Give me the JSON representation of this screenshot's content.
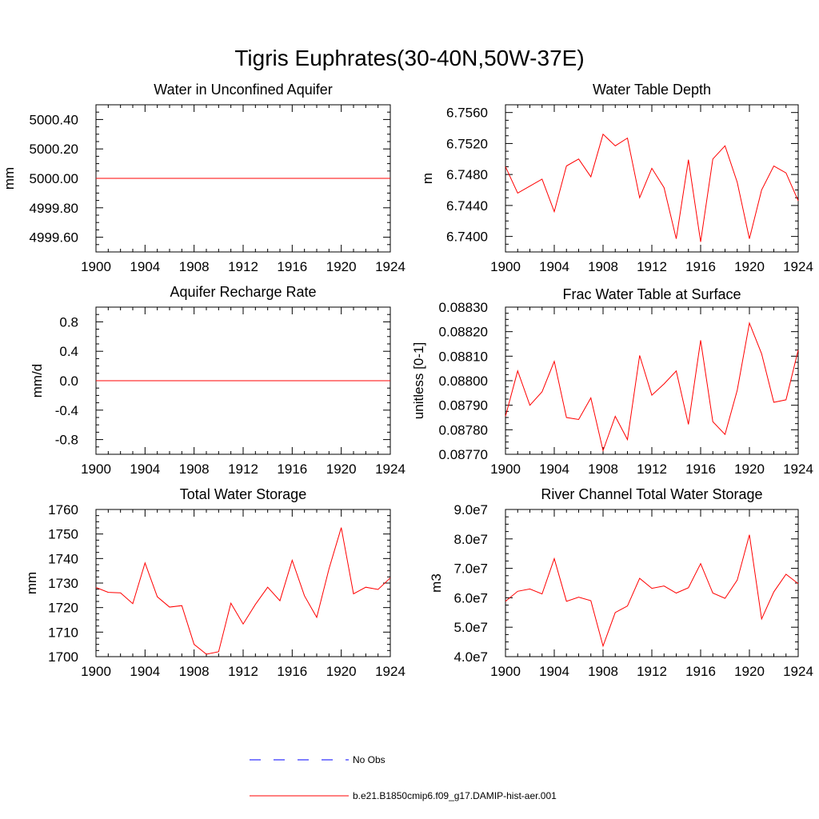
{
  "title": "Tigris Euphrates(30-40N,50W-37E)",
  "chart_data": [
    {
      "type": "line",
      "title": "Water in Unconfined Aquifer",
      "ylabel": "mm",
      "xlim": [
        1900,
        1924
      ],
      "ylim": [
        4999.5,
        5000.5
      ],
      "x_ticks": [
        1900,
        1904,
        1908,
        1912,
        1916,
        1920,
        1924
      ],
      "x_tick_labels": [
        "1900",
        "1904",
        "1908",
        "1912",
        "1916",
        "1920",
        "1924"
      ],
      "y_ticks": [
        4999.6,
        4999.8,
        5000.0,
        5000.2,
        5000.4
      ],
      "y_tick_labels": [
        "4999.60",
        "4999.80",
        "5000.00",
        "5000.20",
        "5000.40"
      ],
      "x": [
        1900,
        1901,
        1902,
        1903,
        1904,
        1905,
        1906,
        1907,
        1908,
        1909,
        1910,
        1911,
        1912,
        1913,
        1914,
        1915,
        1916,
        1917,
        1918,
        1919,
        1920,
        1921,
        1922,
        1923,
        1924
      ],
      "series": [
        {
          "values": [
            5000,
            5000,
            5000,
            5000,
            5000,
            5000,
            5000,
            5000,
            5000,
            5000,
            5000,
            5000,
            5000,
            5000,
            5000,
            5000,
            5000,
            5000,
            5000,
            5000,
            5000,
            5000,
            5000,
            5000,
            5000
          ],
          "color": "#ff0000"
        }
      ]
    },
    {
      "type": "line",
      "title": "Water Table Depth",
      "ylabel": "m",
      "xlim": [
        1900,
        1924
      ],
      "ylim": [
        6.738,
        6.757
      ],
      "x_ticks": [
        1900,
        1904,
        1908,
        1912,
        1916,
        1920,
        1924
      ],
      "x_tick_labels": [
        "1900",
        "1904",
        "1908",
        "1912",
        "1916",
        "1920",
        "1924"
      ],
      "y_ticks": [
        6.74,
        6.744,
        6.748,
        6.752,
        6.756
      ],
      "y_tick_labels": [
        "6.7400",
        "6.7440",
        "6.7480",
        "6.7520",
        "6.7560"
      ],
      "x": [
        1900,
        1901,
        1902,
        1903,
        1904,
        1905,
        1906,
        1907,
        1908,
        1909,
        1910,
        1911,
        1912,
        1913,
        1914,
        1915,
        1916,
        1917,
        1918,
        1919,
        1920,
        1921,
        1922,
        1923,
        1924
      ],
      "series": [
        {
          "values": [
            6.749,
            6.7456,
            6.7465,
            6.7474,
            6.7432,
            6.7491,
            6.75,
            6.7477,
            6.7532,
            6.7517,
            6.7527,
            6.745,
            6.7488,
            6.7463,
            6.7397,
            6.7499,
            6.7393,
            6.75,
            6.7517,
            6.747,
            6.7397,
            6.746,
            6.7491,
            6.7482,
            6.7446
          ],
          "color": "#ff0000"
        }
      ]
    },
    {
      "type": "line",
      "title": "Aquifer Recharge Rate",
      "ylabel": "mm/d",
      "xlim": [
        1900,
        1924
      ],
      "ylim": [
        -1.0,
        1.0
      ],
      "x_ticks": [
        1900,
        1904,
        1908,
        1912,
        1916,
        1920,
        1924
      ],
      "x_tick_labels": [
        "1900",
        "1904",
        "1908",
        "1912",
        "1916",
        "1920",
        "1924"
      ],
      "y_ticks": [
        -0.8,
        -0.4,
        0.0,
        0.4,
        0.8
      ],
      "y_tick_labels": [
        "-0.8",
        "-0.4",
        "0.0",
        "0.4",
        "0.8"
      ],
      "x": [
        1900,
        1901,
        1902,
        1903,
        1904,
        1905,
        1906,
        1907,
        1908,
        1909,
        1910,
        1911,
        1912,
        1913,
        1914,
        1915,
        1916,
        1917,
        1918,
        1919,
        1920,
        1921,
        1922,
        1923,
        1924
      ],
      "series": [
        {
          "values": [
            0,
            0,
            0,
            0,
            0,
            0,
            0,
            0,
            0,
            0,
            0,
            0,
            0,
            0,
            0,
            0,
            0,
            0,
            0,
            0,
            0,
            0,
            0,
            0,
            0
          ],
          "color": "#ff0000"
        }
      ]
    },
    {
      "type": "line",
      "title": "Frac Water Table at Surface",
      "ylabel": "unitless [0-1]",
      "xlim": [
        1900,
        1924
      ],
      "ylim": [
        0.0877,
        0.0883
      ],
      "x_ticks": [
        1900,
        1904,
        1908,
        1912,
        1916,
        1920,
        1924
      ],
      "x_tick_labels": [
        "1900",
        "1904",
        "1908",
        "1912",
        "1916",
        "1920",
        "1924"
      ],
      "y_ticks": [
        0.0877,
        0.0878,
        0.0879,
        0.088,
        0.0881,
        0.0882,
        0.0883
      ],
      "y_tick_labels": [
        "0.08770",
        "0.08780",
        "0.08790",
        "0.08800",
        "0.08810",
        "0.08820",
        "0.08830"
      ],
      "x": [
        1900,
        1901,
        1902,
        1903,
        1904,
        1905,
        1906,
        1907,
        1908,
        1909,
        1910,
        1911,
        1912,
        1913,
        1914,
        1915,
        1916,
        1917,
        1918,
        1919,
        1920,
        1921,
        1922,
        1923,
        1924
      ],
      "series": [
        {
          "values": [
            0.087855,
            0.08804,
            0.0879,
            0.087955,
            0.088079,
            0.08785,
            0.087842,
            0.08793,
            0.087715,
            0.087855,
            0.08776,
            0.088103,
            0.087941,
            0.087987,
            0.08804,
            0.087822,
            0.088165,
            0.087833,
            0.087781,
            0.087961,
            0.088235,
            0.08811,
            0.087912,
            0.087922,
            0.088125
          ],
          "color": "#ff0000"
        }
      ]
    },
    {
      "type": "line",
      "title": "Total Water Storage",
      "ylabel": "mm",
      "xlim": [
        1900,
        1924
      ],
      "ylim": [
        1700,
        1760
      ],
      "x_ticks": [
        1900,
        1904,
        1908,
        1912,
        1916,
        1920,
        1924
      ],
      "x_tick_labels": [
        "1900",
        "1904",
        "1908",
        "1912",
        "1916",
        "1920",
        "1924"
      ],
      "y_ticks": [
        1700,
        1710,
        1720,
        1730,
        1740,
        1750,
        1760
      ],
      "y_tick_labels": [
        "1700",
        "1710",
        "1720",
        "1730",
        "1740",
        "1750",
        "1760"
      ],
      "x": [
        1900,
        1901,
        1902,
        1903,
        1904,
        1905,
        1906,
        1907,
        1908,
        1909,
        1910,
        1911,
        1912,
        1913,
        1914,
        1915,
        1916,
        1917,
        1918,
        1919,
        1920,
        1921,
        1922,
        1923,
        1924
      ],
      "series": [
        {
          "values": [
            1728.2,
            1726.2,
            1726.0,
            1721.6,
            1738.2,
            1724.4,
            1720.2,
            1720.8,
            1705.0,
            1701.0,
            1702.0,
            1721.8,
            1713.3,
            1721.3,
            1728.3,
            1722.8,
            1739.3,
            1724.8,
            1716.0,
            1735.8,
            1752.6,
            1725.6,
            1728.3,
            1727.4,
            1732.1
          ],
          "color": "#ff0000"
        }
      ]
    },
    {
      "type": "line",
      "title": "River Channel Total Water Storage",
      "ylabel": "m3",
      "xlim": [
        1900,
        1924
      ],
      "ylim": [
        40000000,
        90000000
      ],
      "x_ticks": [
        1900,
        1904,
        1908,
        1912,
        1916,
        1920,
        1924
      ],
      "x_tick_labels": [
        "1900",
        "1904",
        "1908",
        "1912",
        "1916",
        "1920",
        "1924"
      ],
      "y_ticks": [
        40000000,
        50000000,
        60000000,
        70000000,
        80000000,
        90000000
      ],
      "y_tick_labels": [
        "4.0e7",
        "5.0e7",
        "6.0e7",
        "7.0e7",
        "8.0e7",
        "9.0e7"
      ],
      "x": [
        1900,
        1901,
        1902,
        1903,
        1904,
        1905,
        1906,
        1907,
        1908,
        1909,
        1910,
        1911,
        1912,
        1913,
        1914,
        1915,
        1916,
        1917,
        1918,
        1919,
        1920,
        1921,
        1922,
        1923,
        1924
      ],
      "series": [
        {
          "values": [
            58800000,
            62200000,
            63000000,
            61300000,
            73300000,
            58800000,
            60200000,
            59000000,
            43600000,
            55000000,
            57200000,
            66600000,
            63200000,
            64000000,
            61600000,
            63400000,
            71600000,
            61600000,
            59800000,
            66000000,
            81400000,
            52800000,
            62000000,
            68000000,
            64800000
          ],
          "color": "#ff0000"
        }
      ]
    }
  ],
  "legend": [
    {
      "label": "No Obs",
      "color": "#0000ff",
      "style": "dashed"
    },
    {
      "label": "b.e21.B1850cmip6.f09_g17.DAMIP-hist-aer.001",
      "color": "#ff0000",
      "style": "solid"
    }
  ]
}
